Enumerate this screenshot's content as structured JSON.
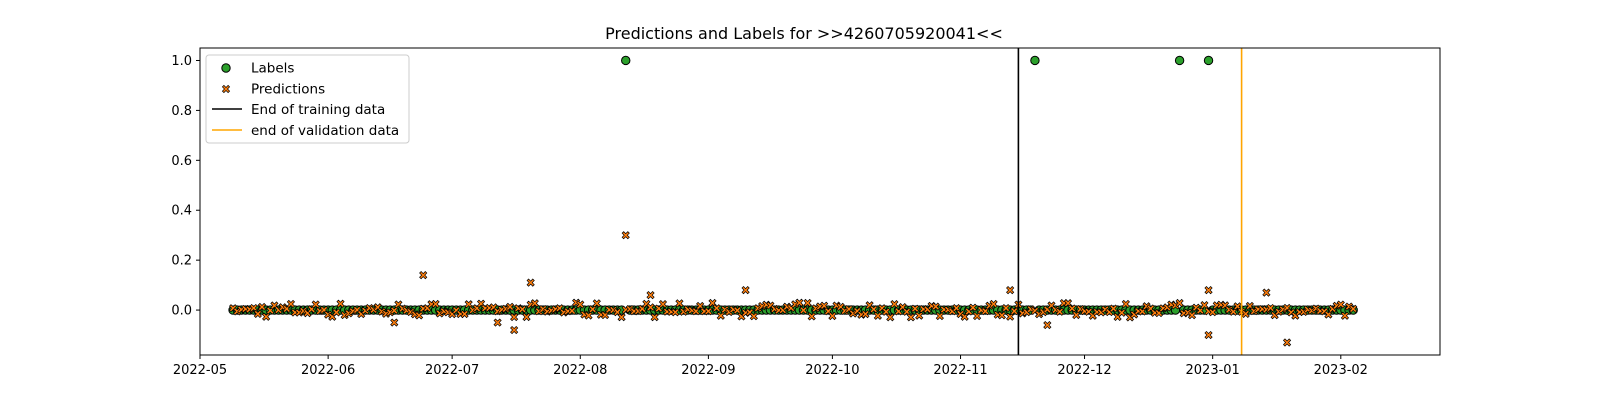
{
  "chart_data": {
    "type": "scatter",
    "title": "Predictions and Labels for >>4260705920041<<",
    "xlabel": "",
    "ylabel": "",
    "x_range": [
      "2022-05-01",
      "2023-02-25"
    ],
    "ylim": [
      -0.18,
      1.05
    ],
    "x_ticks": [
      "2022-05",
      "2022-06",
      "2022-07",
      "2022-08",
      "2022-09",
      "2022-10",
      "2022-11",
      "2022-12",
      "2023-01",
      "2023-02"
    ],
    "y_ticks": [
      "0.0",
      "0.2",
      "0.4",
      "0.6",
      "0.8",
      "1.0"
    ],
    "grid": false,
    "legend_position": "top-left",
    "series": [
      {
        "name": "Labels",
        "marker": "circle",
        "color": "#2ca02c",
        "date_range": [
          "2022-05-09",
          "2023-02-04"
        ],
        "baseline": 0.0,
        "spikes": [
          {
            "date": "2022-08-12",
            "value": 1.0
          },
          {
            "date": "2022-11-19",
            "value": 1.0
          },
          {
            "date": "2022-12-24",
            "value": 1.0
          },
          {
            "date": "2022-12-31",
            "value": 1.0
          }
        ]
      },
      {
        "name": "Predictions",
        "marker": "x",
        "color": "#ff7f0e",
        "date_range": [
          "2022-05-09",
          "2023-02-04"
        ],
        "noise_amplitude": 0.03,
        "outliers": [
          {
            "date": "2022-06-24",
            "value": 0.14
          },
          {
            "date": "2022-07-20",
            "value": 0.11
          },
          {
            "date": "2022-08-12",
            "value": 0.3
          },
          {
            "date": "2022-09-10",
            "value": 0.08
          },
          {
            "date": "2022-11-13",
            "value": 0.08
          },
          {
            "date": "2022-12-31",
            "value": 0.08
          },
          {
            "date": "2022-12-31",
            "value": -0.1
          },
          {
            "date": "2023-01-19",
            "value": -0.13
          },
          {
            "date": "2022-11-22",
            "value": -0.06
          },
          {
            "date": "2022-06-17",
            "value": -0.05
          },
          {
            "date": "2022-07-12",
            "value": -0.05
          },
          {
            "date": "2022-07-16",
            "value": -0.08
          },
          {
            "date": "2022-08-18",
            "value": 0.06
          },
          {
            "date": "2023-01-14",
            "value": 0.07
          }
        ]
      }
    ],
    "vlines": [
      {
        "name": "End of training data",
        "date": "2022-11-15",
        "color": "#000000"
      },
      {
        "name": "end of validation data",
        "date": "2023-01-08",
        "color": "#ffa500"
      }
    ]
  }
}
